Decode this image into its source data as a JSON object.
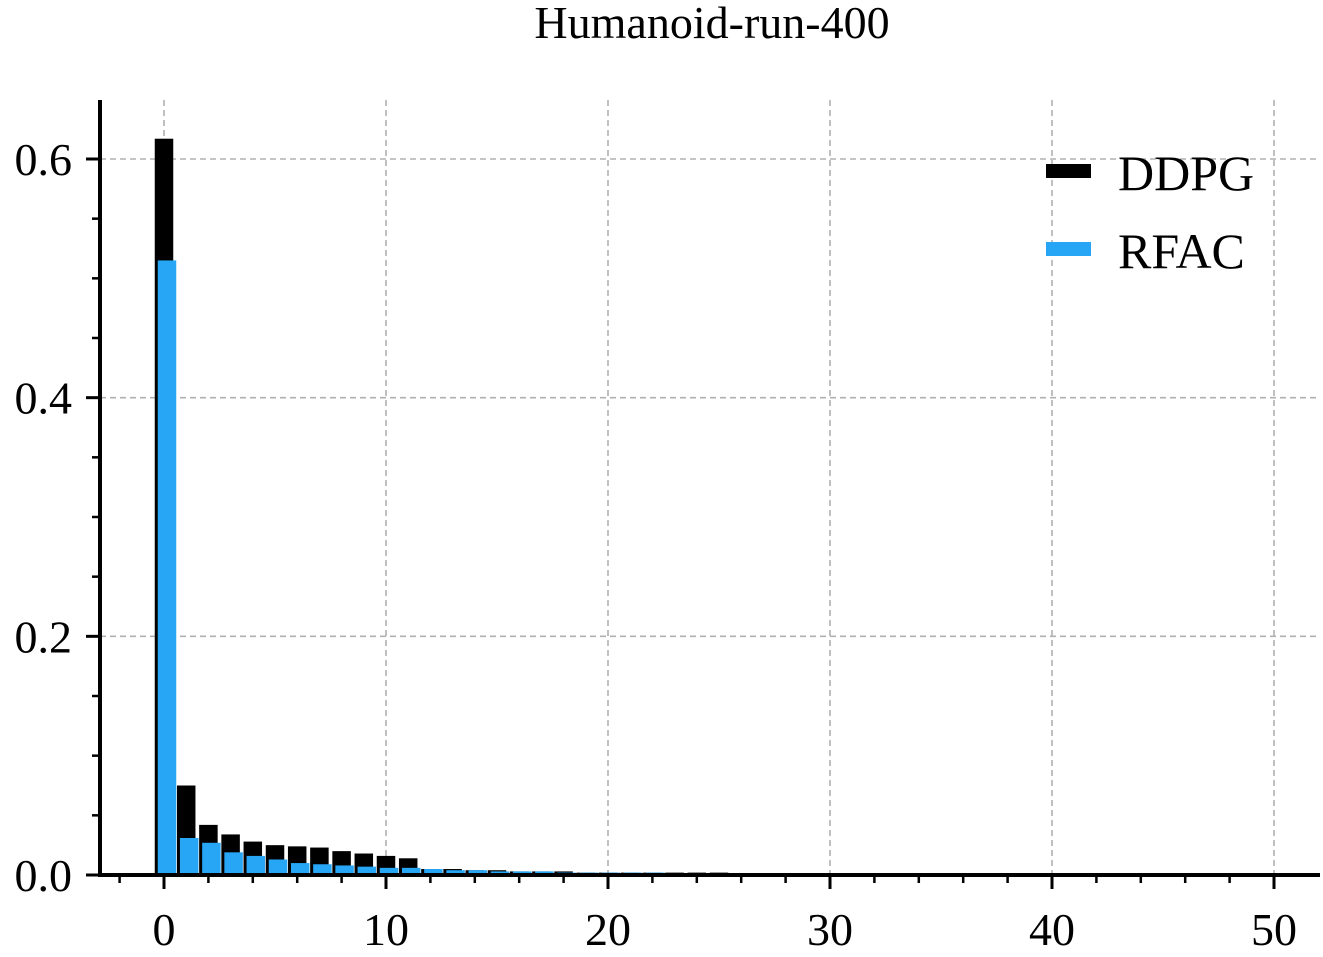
{
  "chart_data": {
    "type": "bar",
    "title": "Humanoid-run-400",
    "xlabel": "",
    "ylabel": "",
    "xlim": [
      -3,
      50.5
    ],
    "ylim": [
      0,
      0.65
    ],
    "xticks": [
      0,
      10,
      20,
      30,
      40,
      50
    ],
    "xtick_labels": [
      "0",
      "10",
      "20",
      "30",
      "40",
      "50"
    ],
    "yticks": [
      0.0,
      0.2,
      0.4,
      0.6
    ],
    "ytick_labels": [
      "0.0",
      "0.2",
      "0.4",
      "0.6"
    ],
    "grid": true,
    "legend_position": "top-right",
    "x": [
      0,
      1,
      2,
      3,
      4,
      5,
      6,
      7,
      8,
      9,
      10,
      11,
      12,
      13,
      14,
      15,
      16,
      17,
      18,
      19,
      20,
      21,
      22,
      23,
      24,
      25,
      26,
      27,
      28,
      29,
      30,
      31
    ],
    "series": [
      {
        "name": "DDPG",
        "color": "#000000",
        "values": [
          0.617,
          0.075,
          0.042,
          0.034,
          0.028,
          0.025,
          0.024,
          0.023,
          0.02,
          0.018,
          0.016,
          0.014,
          0.005,
          0.005,
          0.004,
          0.004,
          0.003,
          0.003,
          0.003,
          0.002,
          0.002,
          0.002,
          0.002,
          0.002,
          0.002,
          0.002,
          0.001,
          0.001,
          0.001,
          0.001,
          0.001,
          0.001
        ]
      },
      {
        "name": "RFAC",
        "color": "#27A6F5",
        "values": [
          0.515,
          0.031,
          0.027,
          0.019,
          0.016,
          0.013,
          0.01,
          0.009,
          0.008,
          0.007,
          0.006,
          0.006,
          0.005,
          0.004,
          0.004,
          0.003,
          0.003,
          0.003,
          0.002,
          0.002,
          0.002,
          0.002,
          0.002,
          0.001,
          0.001,
          0.001,
          0.001,
          0.001,
          0.001,
          0.001,
          0.001,
          0.001
        ]
      }
    ]
  }
}
